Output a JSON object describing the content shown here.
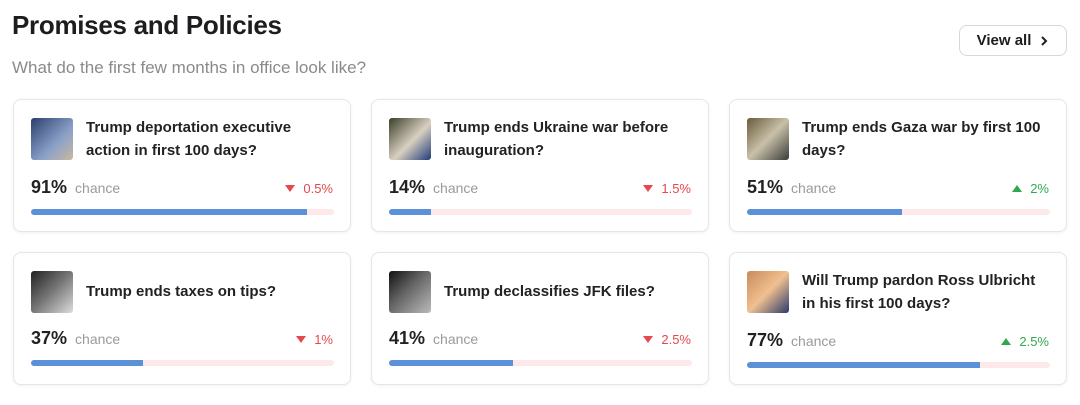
{
  "header": {
    "title": "Promises and Policies",
    "subtitle": "What do the first few months in office look like?",
    "button": "View all"
  },
  "cards": [
    {
      "question": "Trump deportation executive action in first 100 days?",
      "percent": {
        "value": 91,
        "label": "91%"
      },
      "caption": "chance",
      "change": "0.5%",
      "direction": "down"
    },
    {
      "question": "Trump ends Ukraine war before inauguration?",
      "percent": {
        "value": 14,
        "label": "14%"
      },
      "caption": "chance",
      "change": "1.5%",
      "direction": "down"
    },
    {
      "question": "Trump ends Gaza war by first 100 days?",
      "percent": {
        "value": 51,
        "label": "51%"
      },
      "caption": "chance",
      "change": "2%",
      "direction": "up"
    },
    {
      "question": "Trump ends taxes on tips?",
      "percent": {
        "value": 37,
        "label": "37%"
      },
      "caption": "chance",
      "change": "1%",
      "direction": "down"
    },
    {
      "question": "Trump declassifies JFK files?",
      "percent": {
        "value": 41,
        "label": "41%"
      },
      "caption": "chance",
      "change": "2.5%",
      "direction": "down"
    },
    {
      "question": "Will Trump pardon Ross Ulbricht in his first 100 days?",
      "percent": {
        "value": 77,
        "label": "77%"
      },
      "caption": "chance",
      "change": "2.5%",
      "direction": "up"
    }
  ]
}
